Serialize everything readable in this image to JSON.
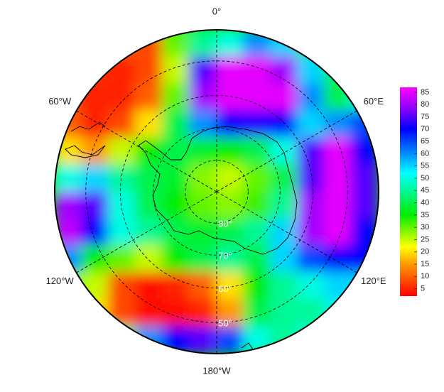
{
  "map": {
    "type": "polar_stereographic",
    "latlim": [
      90,
      41.5
    ],
    "lat_ticks": [
      {
        "value": 80,
        "label": "80°"
      },
      {
        "value": 70,
        "label": "70°"
      },
      {
        "value": 60,
        "label": "60°"
      },
      {
        "value": 50,
        "label": "50°"
      }
    ],
    "lon_ticks": [
      {
        "value": 0,
        "label": "0°"
      },
      {
        "value": 60,
        "label": "60°E"
      },
      {
        "value": 120,
        "label": "120°E"
      },
      {
        "value": 180,
        "label": "180°W"
      },
      {
        "value": -120,
        "label": "120°W"
      },
      {
        "value": -60,
        "label": "60°W"
      }
    ],
    "clim": [
      2,
      87
    ],
    "colorscale": [
      [
        2,
        "#ff0000"
      ],
      [
        15,
        "#ff9900"
      ],
      [
        22,
        "#ffff00"
      ],
      [
        35,
        "#00ee00"
      ],
      [
        52,
        "#00ffff"
      ],
      [
        70,
        "#0000ff"
      ],
      [
        78,
        "#8800ff"
      ],
      [
        87,
        "#ff00ff"
      ]
    ],
    "colorbar_ticks": [
      5,
      10,
      15,
      20,
      25,
      30,
      35,
      40,
      45,
      50,
      55,
      60,
      65,
      70,
      75,
      80,
      85
    ],
    "field": [
      [
        null,
        null,
        10,
        8,
        30,
        45,
        50,
        60,
        55,
        45,
        null,
        null
      ],
      [
        null,
        6,
        5,
        8,
        25,
        75,
        85,
        85,
        80,
        55,
        40,
        null
      ],
      [
        8,
        5,
        5,
        10,
        30,
        80,
        85,
        85,
        85,
        60,
        40,
        50
      ],
      [
        10,
        5,
        8,
        20,
        40,
        60,
        70,
        72,
        70,
        55,
        60,
        65
      ],
      [
        20,
        15,
        25,
        35,
        40,
        38,
        35,
        40,
        50,
        75,
        85,
        70
      ],
      [
        50,
        55,
        45,
        40,
        38,
        28,
        25,
        30,
        40,
        75,
        85,
        75
      ],
      [
        80,
        75,
        50,
        40,
        35,
        30,
        28,
        32,
        45,
        80,
        85,
        75
      ],
      [
        82,
        70,
        50,
        45,
        40,
        38,
        40,
        45,
        55,
        80,
        85,
        70
      ],
      [
        60,
        35,
        30,
        25,
        35,
        40,
        45,
        40,
        55,
        65,
        70,
        70
      ],
      [
        30,
        25,
        8,
        3,
        5,
        10,
        20,
        35,
        45,
        50,
        55,
        55
      ],
      [
        null,
        20,
        8,
        3,
        3,
        5,
        15,
        40,
        45,
        45,
        50,
        null
      ],
      [
        null,
        null,
        45,
        60,
        70,
        75,
        65,
        50,
        45,
        50,
        null,
        null
      ]
    ]
  }
}
